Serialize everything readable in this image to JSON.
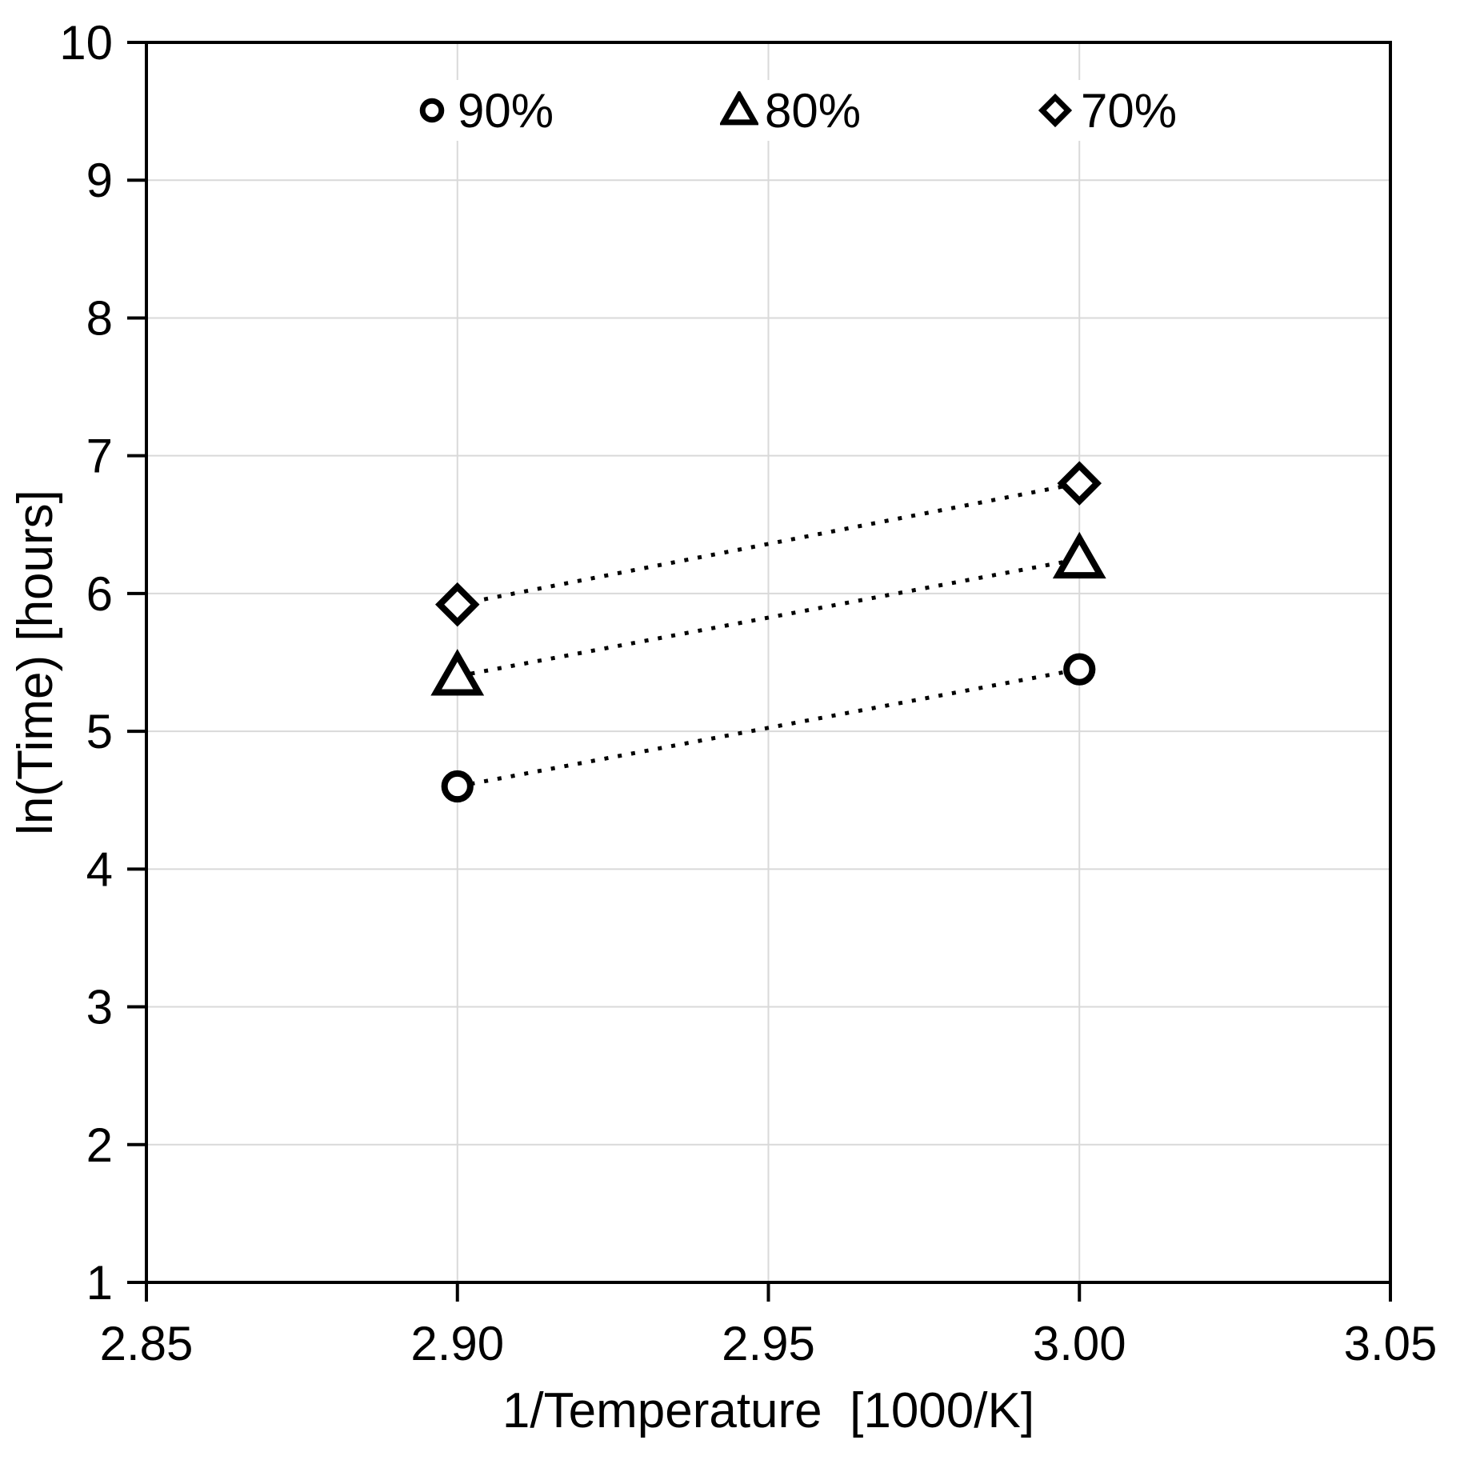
{
  "chart_data": {
    "type": "scatter",
    "title": "",
    "xlabel": "1/Temperature  [1000/K]",
    "ylabel": "ln(Time) [hours]",
    "xlim": [
      2.85,
      3.05
    ],
    "ylim": [
      1,
      10
    ],
    "x_ticks": [
      2.85,
      2.9,
      2.95,
      3.0,
      3.05
    ],
    "x_tick_labels": [
      "2.85",
      "2.90",
      "2.95",
      "3.00",
      "3.05"
    ],
    "y_ticks": [
      1,
      2,
      3,
      4,
      5,
      6,
      7,
      8,
      9,
      10
    ],
    "y_tick_labels": [
      "1",
      "2",
      "3",
      "4",
      "5",
      "6",
      "7",
      "8",
      "9",
      "10"
    ],
    "grid": true,
    "legend_position": "top-inside",
    "series": [
      {
        "name": "90%",
        "marker": "circle",
        "line_style": "dotted",
        "x": [
          2.9,
          3.0
        ],
        "y": [
          4.6,
          5.45
        ]
      },
      {
        "name": "80%",
        "marker": "triangle",
        "line_style": "dotted",
        "x": [
          2.9,
          3.0
        ],
        "y": [
          5.4,
          6.25
        ]
      },
      {
        "name": "70%",
        "marker": "diamond",
        "line_style": "dotted",
        "x": [
          2.9,
          3.0
        ],
        "y": [
          5.92,
          6.8
        ]
      }
    ],
    "colors": {
      "axis": "#000000",
      "grid": "#d9d9d9",
      "marker_stroke": "#000000",
      "marker_fill": "#ffffff",
      "trend_line": "#000000",
      "text": "#000000",
      "background": "#ffffff"
    }
  }
}
